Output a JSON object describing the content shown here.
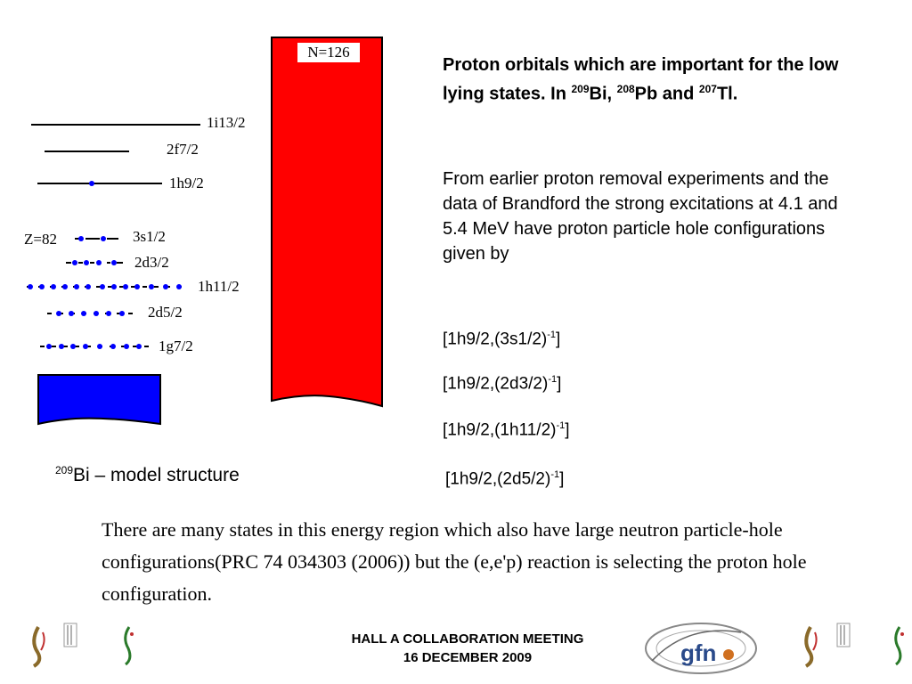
{
  "neutron_label": "N=126",
  "colors": {
    "neutron": "#ff0000",
    "proton": "#0000ff",
    "line": "#000000"
  },
  "levels": {
    "z_label": "Z=82",
    "items": [
      {
        "label": "1i13/2"
      },
      {
        "label": "2f7/2"
      },
      {
        "label": "1h9/2"
      },
      {
        "label": "3s1/2"
      },
      {
        "label": "2d3/2"
      },
      {
        "label": "1h11/2"
      },
      {
        "label": "2d5/2"
      },
      {
        "label": "1g7/2"
      }
    ]
  },
  "caption": {
    "sup": "209",
    "text": "Bi – model structure"
  },
  "heading": {
    "text1": "Proton orbitals which are important for the low lying states. In ",
    "sup1": "209",
    "text2": "Bi, ",
    "sup2": "208",
    "text3": "Pb and ",
    "sup3": "207",
    "text4": "Tl."
  },
  "paragraph": "From earlier proton removal experiments and the data of Brandford the strong excitations at 4.1 and 5.4 MeV have proton particle hole configurations given by",
  "configs": [
    {
      "text": "[1h9/2,(3s1/2)",
      "sup": "-1",
      "close": "]"
    },
    {
      "text": "[1h9/2,(2d3/2)",
      "sup": "-1",
      "close": "]"
    },
    {
      "text": "[1h9/2,(1h11/2)",
      "sup": "-1",
      "close": "]"
    },
    {
      "text": "[1h9/2,(2d5/2)",
      "sup": "-1",
      "close": "]"
    }
  ],
  "bottom_text": "There are many  states in this energy region which also have large neutron particle-hole configurations(PRC 74 034303 (2006))  but the (e,e'p) reaction is selecting the proton hole configuration.",
  "footer": {
    "line1": "HALL A COLLABORATION MEETING",
    "line2": "16 DECEMBER 2009"
  },
  "logos": {
    "gfn": "gfn"
  }
}
